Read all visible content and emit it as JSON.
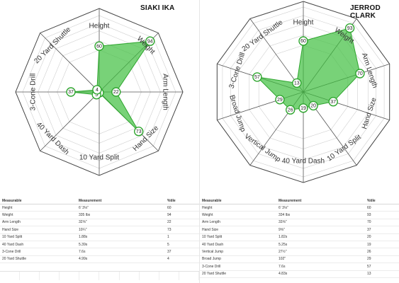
{
  "table_headers": {
    "measurable": "Measurable",
    "measurement": "Measurement",
    "percentile": "%tile"
  },
  "chart_data": [
    {
      "type": "radar",
      "title": "SIAKI IKA",
      "axes": [
        "Height",
        "Weight",
        "Arm Length",
        "Hand Size",
        "10 Yard Split",
        "40 Yard Dash",
        "3-Cone Drill",
        "20 Yard Shuttle"
      ],
      "values": [
        60,
        94,
        22,
        73,
        1,
        5,
        37,
        4
      ],
      "rlim": [
        0,
        100
      ],
      "fill_color": "#3fbf3f",
      "table": [
        [
          "Height",
          "6' 3⅛\"",
          "60"
        ],
        [
          "Weight",
          "335 lbs",
          "94"
        ],
        [
          "Arm Length",
          "32⅝\"",
          "22"
        ],
        [
          "Hand Size",
          "10¼\"",
          "73"
        ],
        [
          "10 Yard Split",
          "1.88s",
          "1"
        ],
        [
          "40 Yard Dash",
          "5.39s",
          "5"
        ],
        [
          "3-Cone Drill",
          "7.6s",
          "37"
        ],
        [
          "20 Yard Shuttle",
          "4.99s",
          "4"
        ]
      ]
    },
    {
      "type": "radar",
      "title": "JERROD CLARK",
      "axes": [
        "Height",
        "Weight",
        "Arm Length",
        "Hand Size",
        "10 Yard Split",
        "40 Yard Dash",
        "Vertical Jump",
        "Broad Jump",
        "3-Cone Drill",
        "20 Yard Shuttle"
      ],
      "values": [
        60,
        93,
        70,
        37,
        20,
        19,
        26,
        29,
        57,
        13
      ],
      "rlim": [
        0,
        100
      ],
      "fill_color": "#3fbf3f",
      "table": [
        [
          "Height",
          "6' 3⅛\"",
          "60"
        ],
        [
          "Weight",
          "334 lbs",
          "93"
        ],
        [
          "Arm Length",
          "33⅝\"",
          "70"
        ],
        [
          "Hand Size",
          "9⅝\"",
          "37"
        ],
        [
          "10 Yard Split",
          "1.82s",
          "20"
        ],
        [
          "40 Yard Dash",
          "5.25s",
          "19"
        ],
        [
          "Vertical Jump",
          "27½\"",
          "26"
        ],
        [
          "Broad Jump",
          "102\"",
          "29"
        ],
        [
          "3-Cone Drill",
          "7.6s",
          "57"
        ],
        [
          "20 Yard Shuttle",
          "4.83s",
          "13"
        ]
      ]
    }
  ]
}
